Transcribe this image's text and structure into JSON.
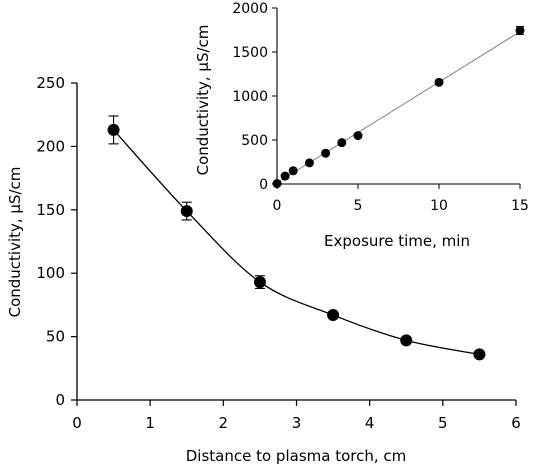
{
  "chart_data": [
    {
      "type": "line",
      "title": "",
      "xlabel": "Distance to plasma torch, cm",
      "ylabel": "Conductivity, µS/cm",
      "xlim": [
        0,
        6
      ],
      "ylim": [
        0,
        250
      ],
      "x_ticks": [
        "0",
        "1",
        "2",
        "3",
        "4",
        "5",
        "6"
      ],
      "y_ticks": [
        "0",
        "50",
        "100",
        "150",
        "200",
        "250"
      ],
      "grid": false,
      "series": [
        {
          "x": [
            0.5,
            1.5,
            2.5,
            3.5,
            4.5,
            5.5
          ],
          "y": [
            213,
            149,
            93,
            67,
            47,
            36
          ],
          "error": [
            11,
            7,
            5,
            2,
            2,
            2
          ],
          "color": "#000000",
          "marker": "circle",
          "smooth": true
        }
      ]
    },
    {
      "type": "scatter",
      "title": "",
      "xlabel": "Exposure time, min",
      "ylabel": "Conductivity, µS/cm",
      "xlim": [
        0,
        15
      ],
      "ylim": [
        0,
        2000
      ],
      "x_ticks": [
        "0",
        "5",
        "10",
        "15"
      ],
      "y_ticks": [
        "0",
        "500",
        "1000",
        "1500",
        "2000"
      ],
      "grid": false,
      "series": [
        {
          "x": [
            0,
            0.5,
            1,
            2,
            3,
            4,
            5,
            10,
            15
          ],
          "y": [
            5,
            90,
            150,
            240,
            350,
            470,
            550,
            1155,
            1745
          ],
          "error": [
            0,
            0,
            0,
            0,
            0,
            0,
            0,
            0,
            45
          ],
          "color": "#000000",
          "marker": "circle"
        }
      ],
      "trendline": {
        "type": "linear",
        "color": "#808080"
      }
    }
  ]
}
